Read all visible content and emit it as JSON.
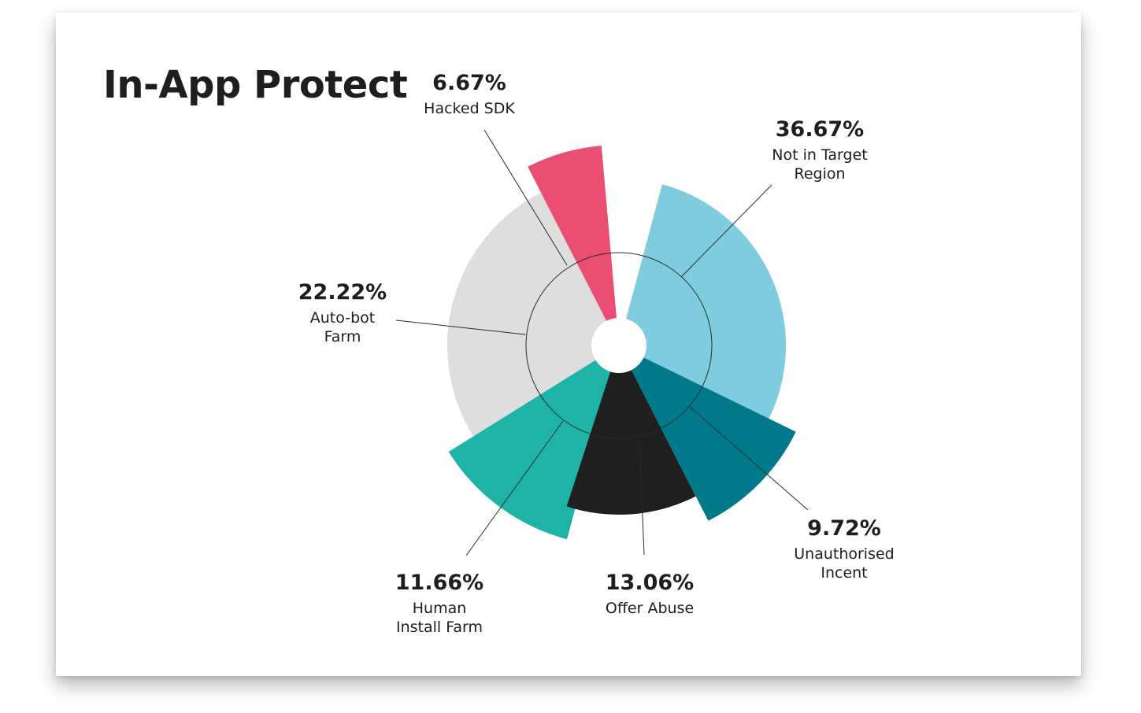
{
  "chart_data": {
    "type": "pie",
    "title": "In-App Protect",
    "subtype": "nightingale-rose",
    "series": [
      {
        "value": "36.67%",
        "label_lines": [
          "Not in Target",
          "Region"
        ],
        "color": "#7fccdf"
      },
      {
        "value": "9.72%",
        "label_lines": [
          "Unauthorised",
          "Incent"
        ],
        "color": "#007a8a"
      },
      {
        "value": "13.06%",
        "label_lines": [
          "Offer Abuse"
        ],
        "color": "#1f1f1f"
      },
      {
        "value": "11.66%",
        "label_lines": [
          "Human",
          "Install Farm"
        ],
        "color": "#1db4a7"
      },
      {
        "value": "22.22%",
        "label_lines": [
          "Auto-bot",
          "Farm"
        ],
        "color": "#dedede"
      },
      {
        "value": "6.67%",
        "label_lines": [
          "Hacked SDK"
        ],
        "color": "#ea4f73"
      }
    ]
  }
}
